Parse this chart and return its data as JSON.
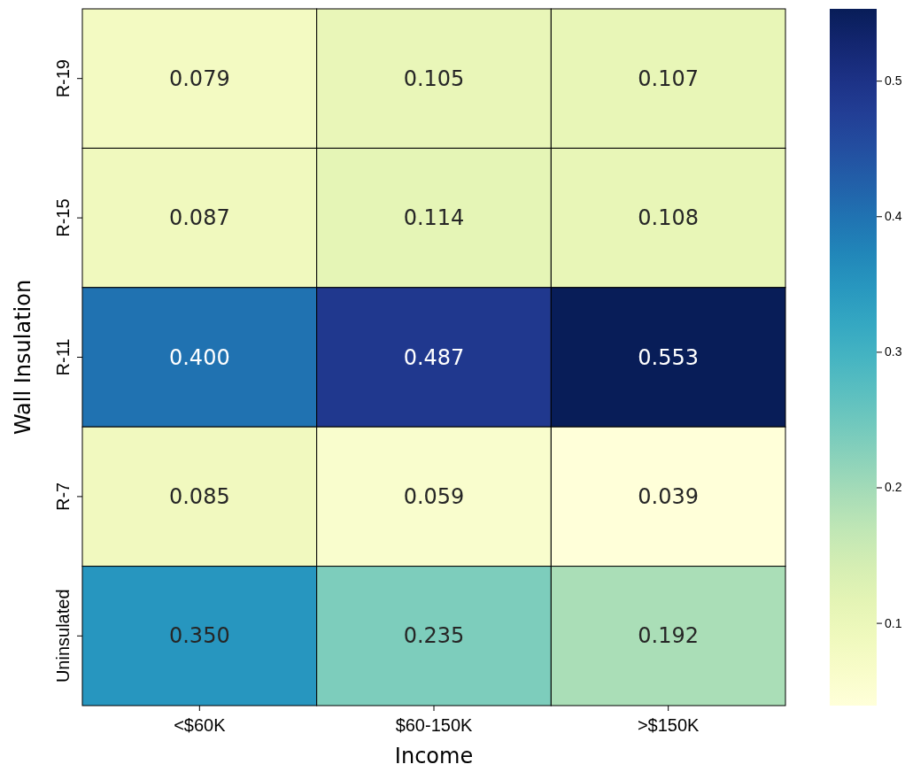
{
  "chart_data": {
    "type": "heatmap",
    "xlabel": "Income",
    "ylabel": "Wall Insulation",
    "categories": [
      "<$60K",
      "$60-150K",
      ">$150K"
    ],
    "y_categories": [
      "R-19",
      "R-15",
      "R-11",
      "R-7",
      "Uninsulated"
    ],
    "cells": [
      [
        0.079,
        0.105,
        0.107
      ],
      [
        0.087,
        0.114,
        0.108
      ],
      [
        0.4,
        0.487,
        0.553
      ],
      [
        0.085,
        0.059,
        0.039
      ],
      [
        0.35,
        0.235,
        0.192
      ]
    ],
    "cell_labels": [
      [
        "0.079",
        "0.105",
        "0.107"
      ],
      [
        "0.087",
        "0.114",
        "0.108"
      ],
      [
        "0.400",
        "0.487",
        "0.553"
      ],
      [
        "0.085",
        "0.059",
        "0.039"
      ],
      [
        "0.350",
        "0.235",
        "0.192"
      ]
    ],
    "clim": [
      0.039,
      0.553
    ],
    "cticks": [
      0.1,
      0.2,
      0.3,
      0.4,
      0.5
    ]
  }
}
